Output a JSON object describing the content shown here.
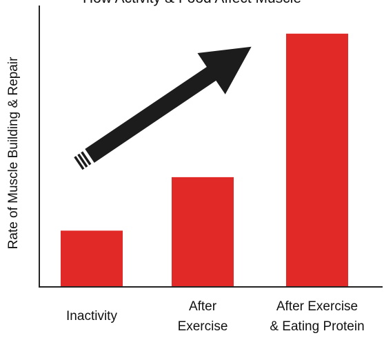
{
  "chart_data": {
    "type": "bar",
    "title": "How Activity & Food Affect Muscle",
    "ylabel": "Rate of Muscle Building & Repair",
    "xlabel": "",
    "categories": [
      [
        "Inactivity"
      ],
      [
        "After",
        "Exercise"
      ],
      [
        "After Exercise",
        "& Eating Protein"
      ]
    ],
    "values": [
      20,
      39,
      90
    ],
    "ylim": [
      0,
      100
    ],
    "bar_color": "#e12a27",
    "axis_color": "#222222",
    "arrow_color": "#1c1c1c",
    "annotation": "upward-trend-arrow",
    "grid": false,
    "legend": "none"
  }
}
